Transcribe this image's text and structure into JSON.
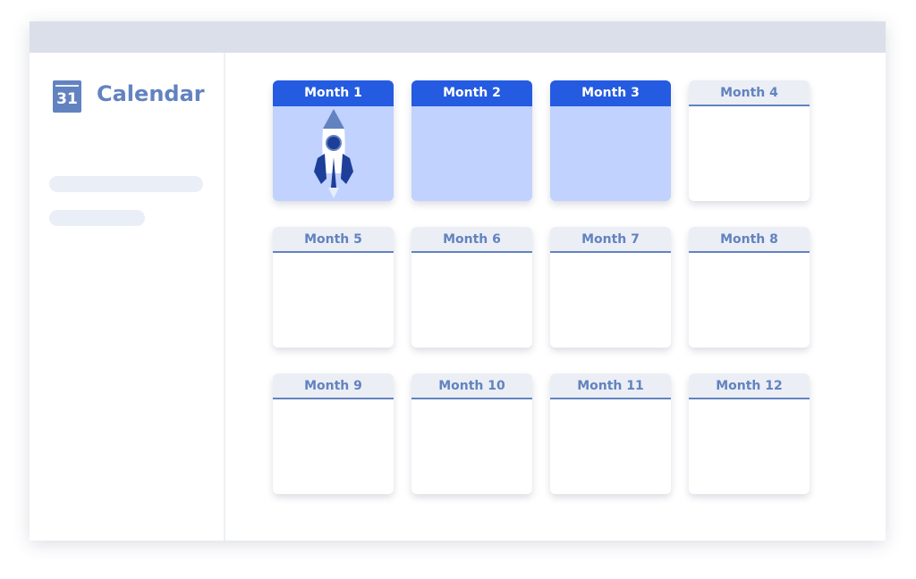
{
  "app": {
    "title": "Calendar",
    "logo_text": "31",
    "accent": "#245be0",
    "muted_accent": "#6283c0"
  },
  "months": [
    {
      "label": "Month 1",
      "active": true,
      "icon": "rocket-icon"
    },
    {
      "label": "Month 2",
      "active": true
    },
    {
      "label": "Month 3",
      "active": true
    },
    {
      "label": "Month 4",
      "active": false
    },
    {
      "label": "Month 5",
      "active": false
    },
    {
      "label": "Month 6",
      "active": false
    },
    {
      "label": "Month 7",
      "active": false
    },
    {
      "label": "Month 8",
      "active": false
    },
    {
      "label": "Month 9",
      "active": false
    },
    {
      "label": "Month 10",
      "active": false
    },
    {
      "label": "Month 11",
      "active": false
    },
    {
      "label": "Month 12",
      "active": false
    }
  ]
}
